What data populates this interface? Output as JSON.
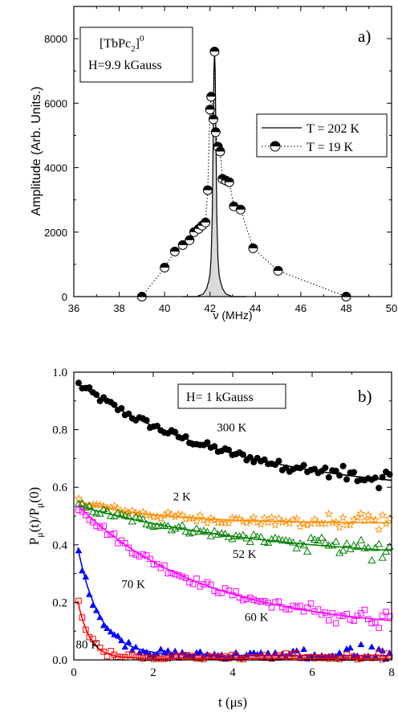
{
  "chart_data": [
    {
      "type": "line",
      "panel_label": "a)",
      "xlabel": "ν (MHz)",
      "ylabel": "Amplitude (Arb. Units.)",
      "xlim": [
        36,
        50
      ],
      "ylim": [
        0,
        9000
      ],
      "xticks": [
        36,
        38,
        40,
        42,
        44,
        46,
        48,
        50
      ],
      "yticks": [
        0,
        2000,
        4000,
        6000,
        8000
      ],
      "annotation_lines": [
        "[TbPc",
        "2",
        "]",
        "0",
        "H=9.9 kGauss"
      ],
      "legend_position": "right",
      "series": [
        {
          "name": "T = 202 K",
          "style": "solid-line",
          "color": "#000000",
          "points": [
            [
              40.8,
              0
            ],
            [
              41.4,
              0
            ],
            [
              41.7,
              80
            ],
            [
              41.85,
              250
            ],
            [
              41.95,
              500
            ],
            [
              42.0,
              700
            ],
            [
              42.05,
              1200
            ],
            [
              42.1,
              2500
            ],
            [
              42.14,
              5000
            ],
            [
              42.17,
              7000
            ],
            [
              42.2,
              7600
            ],
            [
              42.23,
              7000
            ],
            [
              42.26,
              5000
            ],
            [
              42.3,
              2500
            ],
            [
              42.35,
              1200
            ],
            [
              42.4,
              700
            ],
            [
              42.45,
              500
            ],
            [
              42.55,
              250
            ],
            [
              42.7,
              80
            ],
            [
              43.0,
              0
            ],
            [
              43.6,
              0
            ]
          ]
        },
        {
          "name": "T = 19 K",
          "style": "dotted-line-half-filled-circles",
          "color": "#000000",
          "points": [
            [
              39.0,
              0
            ],
            [
              40.0,
              900
            ],
            [
              40.45,
              1400
            ],
            [
              40.8,
              1600
            ],
            [
              41.1,
              1750
            ],
            [
              41.3,
              2000
            ],
            [
              41.5,
              2100
            ],
            [
              41.65,
              2200
            ],
            [
              41.8,
              2300
            ],
            [
              41.9,
              3300
            ],
            [
              42.0,
              5800
            ],
            [
              42.05,
              6200
            ],
            [
              42.15,
              5500
            ],
            [
              42.2,
              7600
            ],
            [
              42.25,
              5100
            ],
            [
              42.35,
              4650
            ],
            [
              42.45,
              4500
            ],
            [
              42.55,
              3650
            ],
            [
              42.7,
              3600
            ],
            [
              42.85,
              3550
            ],
            [
              43.05,
              2800
            ],
            [
              43.35,
              2700
            ],
            [
              43.9,
              1500
            ],
            [
              45.0,
              800
            ],
            [
              48.0,
              0
            ]
          ]
        }
      ]
    },
    {
      "type": "scatter",
      "panel_label": "b)",
      "xlabel": "t (μs)",
      "ylabel_main": "P",
      "ylabel_sub1": "μ",
      "ylabel_mid": "(t)/P",
      "ylabel_sub2": "μ",
      "ylabel_end": "(0)",
      "xlim": [
        0,
        8
      ],
      "ylim": [
        0,
        1.0
      ],
      "xticks": [
        0,
        2,
        4,
        6,
        8
      ],
      "yticks": [
        0.0,
        0.2,
        0.4,
        0.6,
        0.8,
        1.0
      ],
      "annotation": "H= 1 kGauss",
      "series": [
        {
          "label": "300 K",
          "marker": "filled-circle",
          "color": "#000000",
          "a": 0.4,
          "tau": 4.0,
          "c": 0.57,
          "label_x": 3.6,
          "label_y": 0.795
        },
        {
          "label": "2 K",
          "marker": "open-star",
          "color": "#ff8c00",
          "a": 0.08,
          "tau": 2.0,
          "c": 0.475,
          "label_x": 2.5,
          "label_y": 0.555
        },
        {
          "label": "52 K",
          "marker": "open-triangle",
          "color": "#008000",
          "a": 0.2,
          "tau": 5.0,
          "c": 0.34,
          "label_x": 4.0,
          "label_y": 0.355
        },
        {
          "label": "60 K",
          "marker": "open-square",
          "color": "#ff00ff",
          "a": 0.45,
          "tau": 3.2,
          "c": 0.1,
          "label_x": 4.3,
          "label_y": 0.135
        },
        {
          "label": "70 K",
          "marker": "filled-triangle",
          "color": "#0000ff",
          "a": 0.45,
          "tau": 0.55,
          "c": 0.015,
          "label_x": 1.2,
          "label_y": 0.25
        },
        {
          "label": "80 K",
          "marker": "open-square",
          "color": "#ff0000",
          "a": 0.28,
          "tau": 0.3,
          "c": 0.005,
          "label_x": 0.05,
          "label_y": 0.04
        }
      ]
    }
  ]
}
